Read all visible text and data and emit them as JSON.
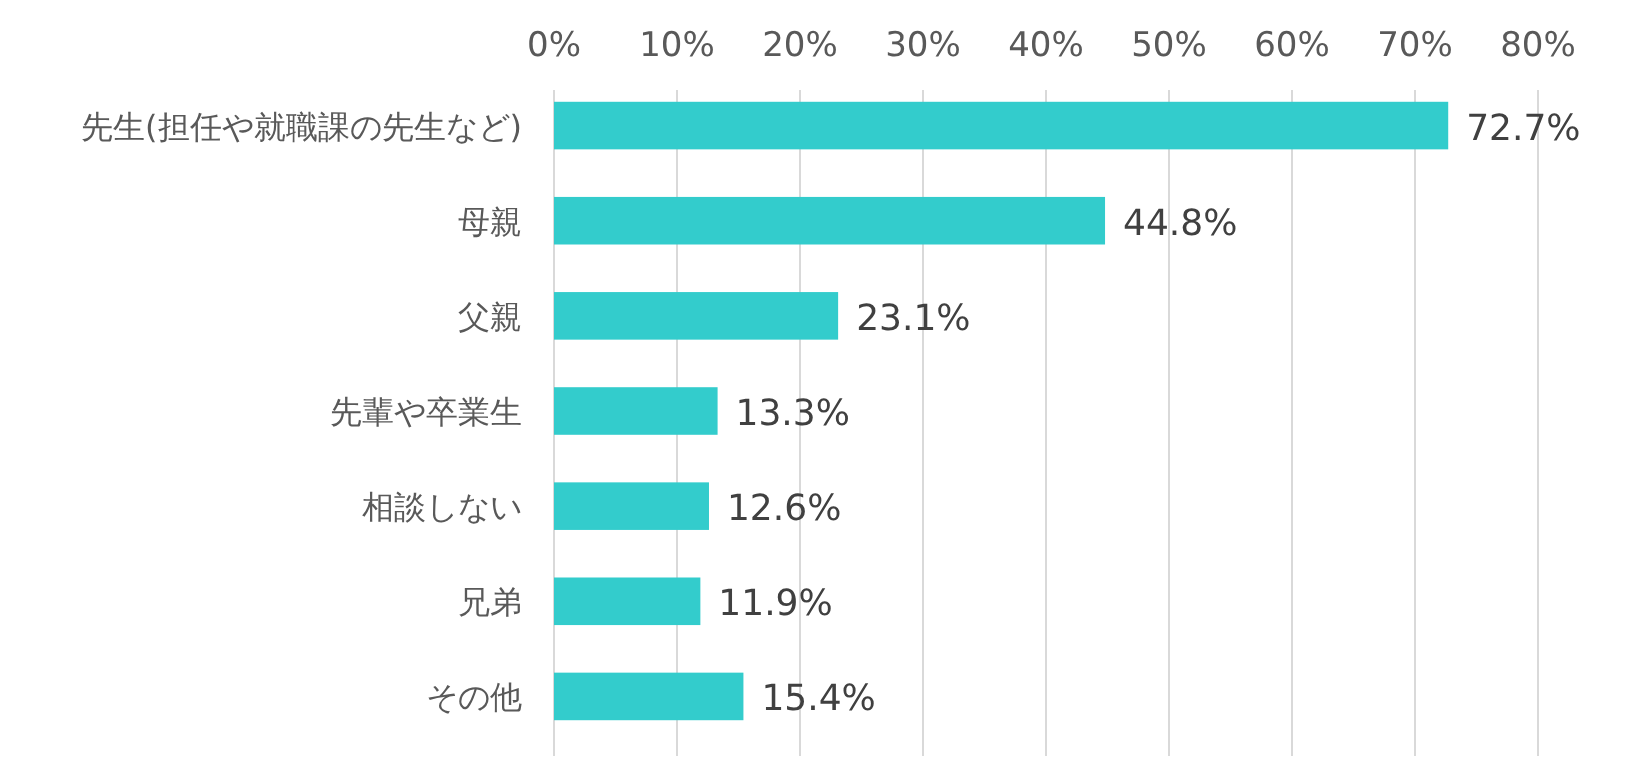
{
  "chart_data": {
    "type": "bar",
    "orientation": "horizontal",
    "categories": [
      "先生(担任や就職課の先生など)",
      "母親",
      "父親",
      "先輩や卒業生",
      "相談しない",
      "兄弟",
      "その他"
    ],
    "values": [
      72.7,
      44.8,
      23.1,
      13.3,
      12.6,
      11.9,
      15.4
    ],
    "value_labels": [
      "72.7%",
      "44.8%",
      "23.1%",
      "13.3%",
      "12.6%",
      "11.9%",
      "15.4%"
    ],
    "color": "#33cccc",
    "xlim": [
      0,
      80
    ],
    "xticks": [
      {
        "value": 0,
        "label": "0%"
      },
      {
        "value": 10,
        "label": "10%"
      },
      {
        "value": 20,
        "label": "20%"
      },
      {
        "value": 30,
        "label": "30%"
      },
      {
        "value": 40,
        "label": "40%"
      },
      {
        "value": 50,
        "label": "50%"
      },
      {
        "value": 60,
        "label": "60%"
      },
      {
        "value": 70,
        "label": "70%"
      },
      {
        "value": 80,
        "label": "80%"
      }
    ],
    "grid": "x"
  }
}
